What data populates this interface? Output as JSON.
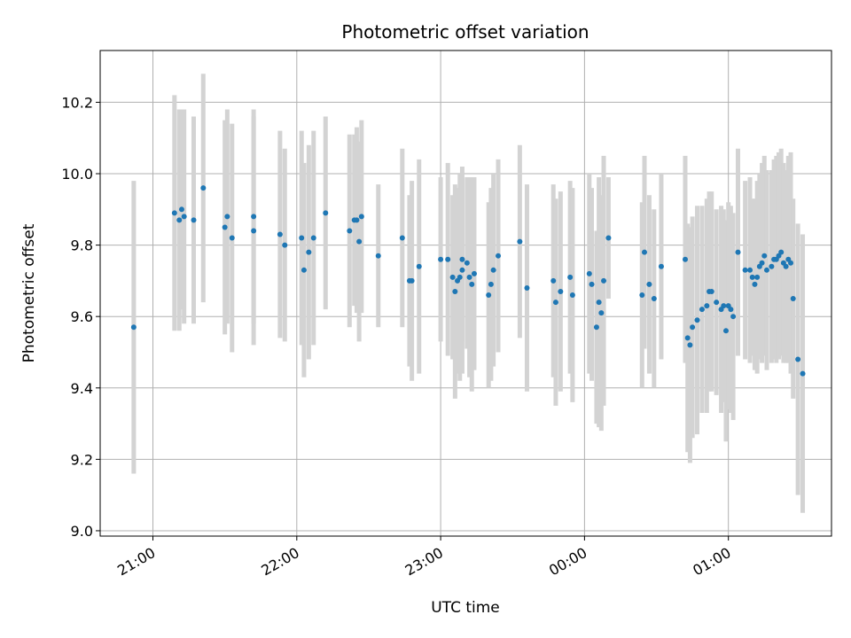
{
  "chart_data": {
    "type": "scatter",
    "title": "Photometric offset variation",
    "xlabel": "UTC time",
    "ylabel": "Photometric offset",
    "x_unit": "UTC time (HH:MM), axis spans 20:38 to 01:43",
    "xlim": [
      "20:38",
      "01:43"
    ],
    "ylim": [
      8.985,
      10.345
    ],
    "grid": true,
    "x_tick_labels": [
      "21:00",
      "22:00",
      "23:00",
      "00:00",
      "01:00"
    ],
    "y_tick_labels": [
      "9.0",
      "9.2",
      "9.4",
      "9.6",
      "9.8",
      "10.0",
      "10.2"
    ],
    "y_tick_values": [
      9.0,
      9.2,
      9.4,
      9.6,
      9.8,
      10.0,
      10.2
    ],
    "colors": {
      "marker": "#1f77b4",
      "errorbar": "#d3d3d3",
      "grid": "#b0b0b0"
    },
    "series": [
      {
        "x": [
          "20:52",
          "21:09",
          "21:11",
          "21:12",
          "21:13",
          "21:17",
          "21:21",
          "21:30",
          "21:31",
          "21:33",
          "21:42",
          "21:42",
          "21:53",
          "21:55",
          "22:02",
          "22:03",
          "22:05",
          "22:07",
          "22:12",
          "22:22",
          "22:24",
          "22:25",
          "22:26",
          "22:27",
          "22:34",
          "22:44",
          "22:47",
          "22:48",
          "22:51",
          "23:00",
          "23:03",
          "23:05",
          "23:06",
          "23:07",
          "23:08",
          "23:09",
          "23:09",
          "23:11",
          "23:12",
          "23:13",
          "23:14",
          "23:20",
          "23:21",
          "23:22",
          "23:24",
          "23:33",
          "23:36",
          "23:47",
          "23:48",
          "23:50",
          "23:54",
          "23:55",
          "24:02",
          "24:03",
          "24:05",
          "24:06",
          "24:07",
          "24:08",
          "24:10",
          "24:24",
          "24:25",
          "24:27",
          "24:29",
          "24:32",
          "24:42",
          "24:43",
          "24:44",
          "24:45",
          "24:47",
          "24:49",
          "24:51",
          "24:52",
          "24:53",
          "24:55",
          "24:57",
          "24:58",
          "24:59",
          "25:00",
          "25:01",
          "25:02",
          "25:04",
          "25:07",
          "25:09",
          "25:10",
          "25:11",
          "25:12",
          "25:13",
          "25:14",
          "25:15",
          "25:16",
          "25:18",
          "25:19",
          "25:20",
          "25:21",
          "25:22",
          "25:23",
          "25:24",
          "25:25",
          "25:26",
          "25:27",
          "25:29",
          "25:31"
        ],
        "x_minutes": [
          1252,
          1269,
          1271,
          1272,
          1273,
          1277,
          1281,
          1290,
          1291,
          1293,
          1302,
          1302,
          1313,
          1315,
          1322,
          1323,
          1325,
          1327,
          1332,
          1342,
          1344,
          1345,
          1346,
          1347,
          1354,
          1364,
          1367,
          1368,
          1371,
          1380,
          1383,
          1385,
          1386,
          1387,
          1388,
          1389,
          1389,
          1391,
          1392,
          1393,
          1394,
          1400,
          1401,
          1402,
          1404,
          1413,
          1416,
          1427,
          1428,
          1430,
          1434,
          1435,
          1442,
          1443,
          1445,
          1446,
          1447,
          1448,
          1450,
          1464,
          1465,
          1467,
          1469,
          1472,
          1482,
          1483,
          1484,
          1485,
          1487,
          1489,
          1491,
          1492,
          1493,
          1495,
          1497,
          1498,
          1499,
          1500,
          1501,
          1502,
          1504,
          1507,
          1509,
          1510,
          1511,
          1512,
          1513,
          1514,
          1515,
          1516,
          1518,
          1519,
          1520,
          1521,
          1522,
          1523,
          1524,
          1525,
          1526,
          1527,
          1529,
          1531
        ],
        "y": [
          9.57,
          9.89,
          9.87,
          9.9,
          9.88,
          9.87,
          9.96,
          9.85,
          9.88,
          9.82,
          9.88,
          9.84,
          9.83,
          9.8,
          9.82,
          9.73,
          9.78,
          9.82,
          9.89,
          9.84,
          9.87,
          9.87,
          9.81,
          9.88,
          9.77,
          9.82,
          9.7,
          9.7,
          9.74,
          9.76,
          9.76,
          9.71,
          9.67,
          9.7,
          9.71,
          9.76,
          9.73,
          9.75,
          9.71,
          9.69,
          9.72,
          9.66,
          9.69,
          9.73,
          9.77,
          9.81,
          9.68,
          9.7,
          9.64,
          9.67,
          9.71,
          9.66,
          9.72,
          9.69,
          9.57,
          9.64,
          9.61,
          9.7,
          9.82,
          9.66,
          9.78,
          9.69,
          9.65,
          9.74,
          9.76,
          9.54,
          9.52,
          9.57,
          9.59,
          9.62,
          9.63,
          9.67,
          9.67,
          9.64,
          9.62,
          9.63,
          9.56,
          9.63,
          9.62,
          9.6,
          9.78,
          9.73,
          9.73,
          9.71,
          9.69,
          9.71,
          9.74,
          9.75,
          9.77,
          9.73,
          9.74,
          9.76,
          9.76,
          9.77,
          9.78,
          9.75,
          9.74,
          9.76,
          9.75,
          9.65,
          9.48,
          9.44
        ],
        "yerr": [
          0.41,
          0.33,
          0.31,
          0.28,
          0.3,
          0.29,
          0.32,
          0.3,
          0.3,
          0.32,
          0.3,
          0.32,
          0.29,
          0.27,
          0.3,
          0.3,
          0.3,
          0.3,
          0.27,
          0.27,
          0.24,
          0.26,
          0.28,
          0.27,
          0.2,
          0.25,
          0.24,
          0.28,
          0.3,
          0.23,
          0.27,
          0.23,
          0.3,
          0.26,
          0.29,
          0.23,
          0.29,
          0.24,
          0.28,
          0.3,
          0.27,
          0.26,
          0.27,
          0.27,
          0.27,
          0.27,
          0.29,
          0.27,
          0.29,
          0.28,
          0.27,
          0.3,
          0.28,
          0.27,
          0.27,
          0.35,
          0.33,
          0.35,
          0.17,
          0.26,
          0.27,
          0.25,
          0.25,
          0.26,
          0.29,
          0.32,
          0.33,
          0.31,
          0.32,
          0.29,
          0.3,
          0.28,
          0.28,
          0.26,
          0.29,
          0.27,
          0.31,
          0.29,
          0.29,
          0.29,
          0.29,
          0.25,
          0.26,
          0.22,
          0.24,
          0.27,
          0.26,
          0.28,
          0.28,
          0.28,
          0.27,
          0.28,
          0.29,
          0.29,
          0.29,
          0.28,
          0.27,
          0.29,
          0.31,
          0.28,
          0.38,
          0.39
        ]
      }
    ]
  }
}
